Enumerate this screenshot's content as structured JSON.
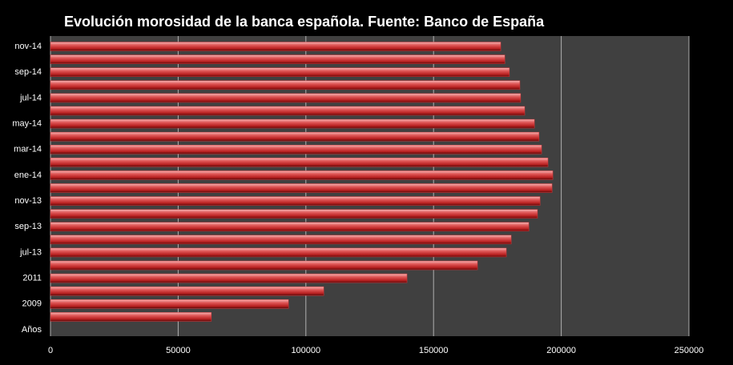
{
  "chart_data": {
    "type": "barh",
    "title": "Evolución morosidad de la banca española. Fuente: Banco de España",
    "categories": [
      "Años",
      null,
      "2009",
      null,
      "2011",
      null,
      "jul-13",
      null,
      "sep-13",
      null,
      "nov-13",
      null,
      "ene-14",
      null,
      "mar-14",
      null,
      "may-14",
      null,
      "jul-14",
      null,
      "sep-14",
      null,
      "nov-14"
    ],
    "values": [
      null,
      63000,
      93200,
      107000,
      139600,
      167200,
      178500,
      180400,
      187300,
      190700,
      191700,
      196400,
      196700,
      194800,
      192300,
      191300,
      189500,
      185700,
      184100,
      183800,
      179700,
      177900,
      176300
    ],
    "color": "#d9383a",
    "xlim": [
      0,
      250000
    ],
    "xticks": [
      0,
      50000,
      100000,
      150000,
      200000,
      250000
    ],
    "grid": true
  }
}
